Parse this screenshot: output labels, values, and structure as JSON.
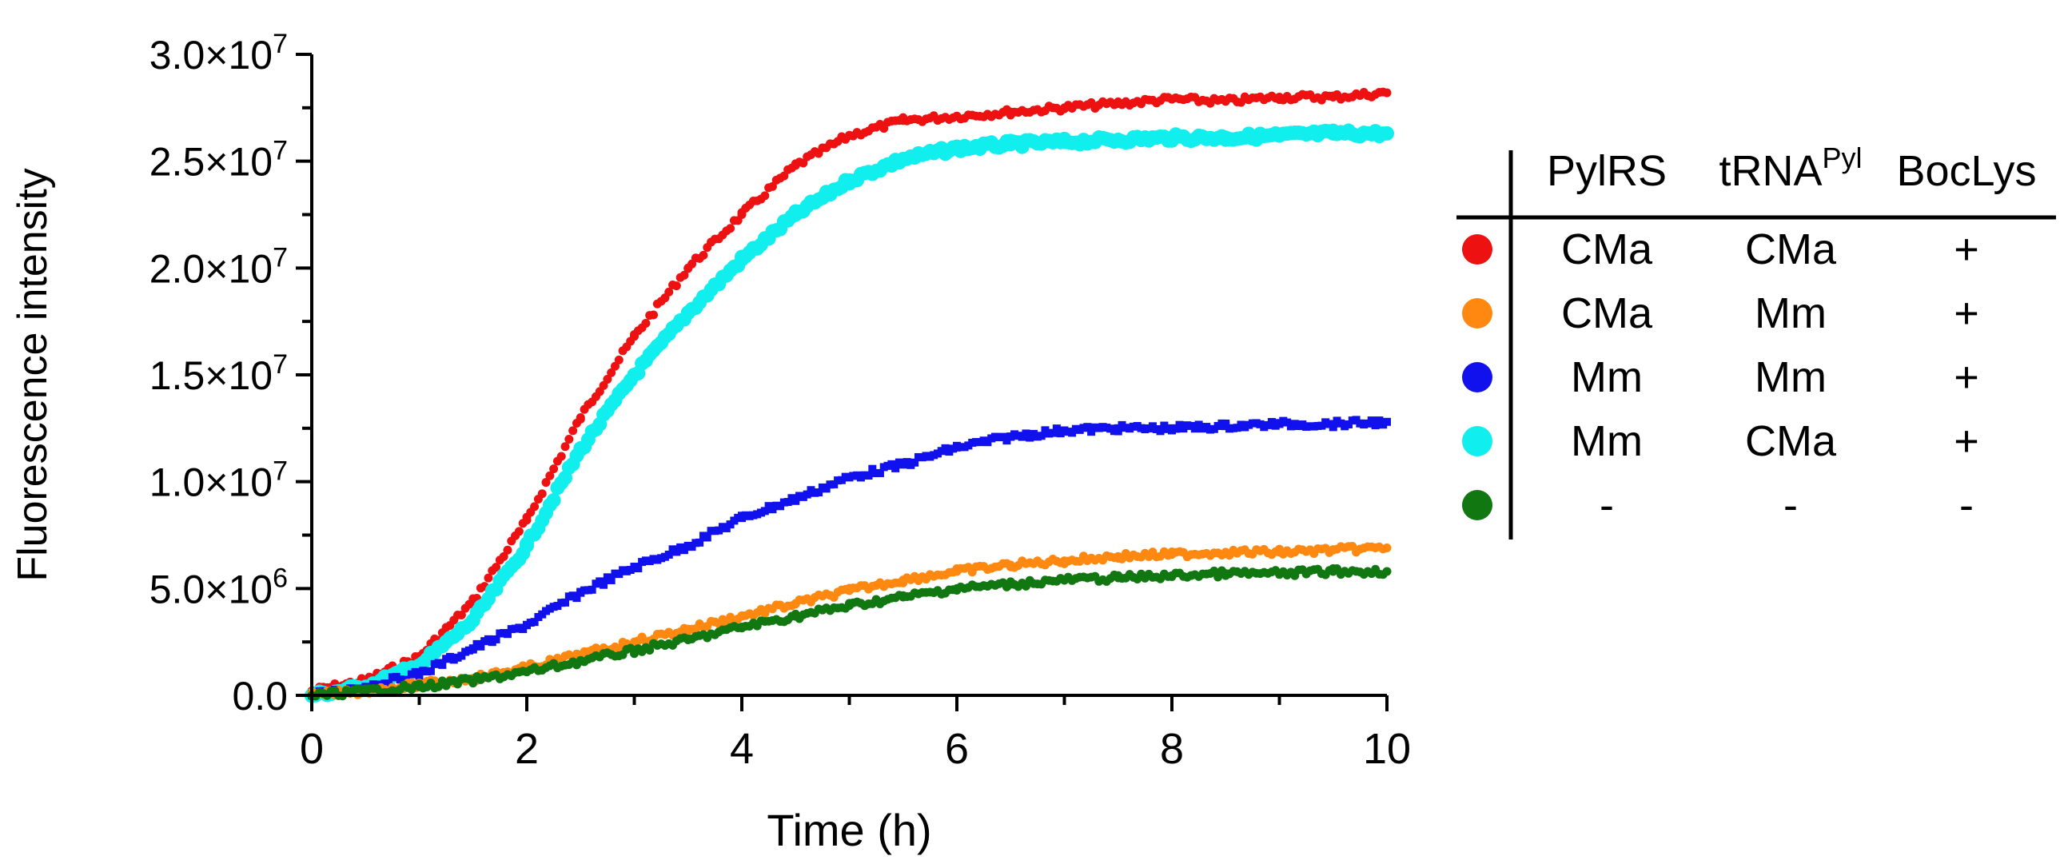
{
  "chart_data": {
    "type": "scatter",
    "title": "",
    "xlabel": "Time (h)",
    "ylabel": "Fluorescence intensity",
    "xlim": [
      0,
      10
    ],
    "ylim": [
      0,
      30000000
    ],
    "xticks": [
      0,
      2,
      4,
      6,
      8,
      10
    ],
    "xtick_labels": [
      "0",
      "2",
      "4",
      "6",
      "8",
      "10"
    ],
    "yticks": [
      0,
      5000000,
      10000000,
      15000000,
      20000000,
      25000000,
      30000000
    ],
    "ytick_labels": [
      {
        "mantissa": "0.0",
        "exp": ""
      },
      {
        "mantissa": "5.0×10",
        "exp": "6"
      },
      {
        "mantissa": "1.0×10",
        "exp": "7"
      },
      {
        "mantissa": "1.5×10",
        "exp": "7"
      },
      {
        "mantissa": "2.0×10",
        "exp": "7"
      },
      {
        "mantissa": "2.5×10",
        "exp": "7"
      },
      {
        "mantissa": "3.0×10",
        "exp": "7"
      }
    ],
    "grid": false,
    "legend_position": "right",
    "legend": {
      "headers": [
        {
          "text": "PylRS",
          "sup": ""
        },
        {
          "text": "tRNA",
          "sup": "Pyl"
        },
        {
          "text": "BocLys",
          "sup": ""
        }
      ],
      "rows": [
        {
          "color": "#ee1111",
          "cells": [
            "CMa",
            "CMa",
            "+"
          ]
        },
        {
          "color": "#ff8811",
          "cells": [
            "CMa",
            "Mm",
            "+"
          ]
        },
        {
          "color": "#1111ee",
          "cells": [
            "Mm",
            "Mm",
            "+"
          ]
        },
        {
          "color": "#11eeee",
          "cells": [
            "Mm",
            "CMa",
            "+"
          ]
        },
        {
          "color": "#117711",
          "cells": [
            "-",
            "-",
            "-"
          ]
        }
      ]
    },
    "series": [
      {
        "name": "PylRS CMa / tRNA CMa / BocLys +",
        "color": "#ee1111",
        "marker": "circle",
        "x": [
          0,
          0.5,
          1,
          1.5,
          2,
          2.5,
          3,
          3.5,
          4,
          4.5,
          5,
          5.5,
          6,
          6.5,
          7,
          7.5,
          8,
          8.5,
          9,
          9.5,
          10
        ],
        "y": [
          200000,
          700000,
          1800000,
          4400000,
          8200000,
          13000000,
          16800000,
          20000000,
          22500000,
          24800000,
          26200000,
          26900000,
          27100000,
          27300000,
          27500000,
          27700000,
          27900000,
          27800000,
          28000000,
          28000000,
          28200000
        ]
      },
      {
        "name": "PylRS Mm / tRNA CMa / BocLys +",
        "color": "#11eeee",
        "marker": "circle",
        "x": [
          0,
          0.5,
          1,
          1.5,
          2,
          2.5,
          3,
          3.5,
          4,
          4.5,
          5,
          5.5,
          6,
          6.5,
          7,
          7.5,
          8,
          8.5,
          9,
          9.5,
          10
        ],
        "y": [
          0,
          400000,
          1400000,
          3500000,
          7000000,
          11500000,
          15000000,
          17900000,
          20400000,
          22500000,
          24100000,
          25100000,
          25600000,
          25800000,
          25900000,
          26000000,
          26100000,
          26100000,
          26200000,
          26300000,
          26300000
        ]
      },
      {
        "name": "PylRS Mm / tRNA Mm / BocLys +",
        "color": "#1111ee",
        "marker": "square",
        "x": [
          0,
          0.5,
          1,
          1.5,
          2,
          2.5,
          3,
          3.5,
          4,
          4.5,
          5,
          5.5,
          6,
          6.5,
          7,
          7.5,
          8,
          8.5,
          9,
          9.5,
          10
        ],
        "y": [
          0,
          400000,
          1000000,
          2200000,
          3300000,
          4800000,
          6000000,
          7000000,
          8300000,
          9200000,
          10200000,
          10800000,
          11600000,
          12100000,
          12400000,
          12500000,
          12500000,
          12600000,
          12700000,
          12700000,
          12800000
        ]
      },
      {
        "name": "PylRS CMa / tRNA Mm / BocLys +",
        "color": "#ff8811",
        "marker": "circle",
        "x": [
          0,
          0.5,
          1,
          1.5,
          2,
          2.5,
          3,
          3.5,
          4,
          4.5,
          5,
          5.5,
          6,
          6.5,
          7,
          7.5,
          8,
          8.5,
          9,
          9.5,
          10
        ],
        "y": [
          0,
          200000,
          500000,
          800000,
          1300000,
          1900000,
          2500000,
          3100000,
          3700000,
          4300000,
          4900000,
          5400000,
          5800000,
          6100000,
          6300000,
          6500000,
          6600000,
          6700000,
          6700000,
          6800000,
          6900000
        ]
      },
      {
        "name": "PylRS - / tRNA - / BocLys -",
        "color": "#117711",
        "marker": "circle",
        "x": [
          0,
          0.5,
          1,
          1.5,
          2,
          2.5,
          3,
          3.5,
          4,
          4.5,
          5,
          5.5,
          6,
          6.5,
          7,
          7.5,
          8,
          8.5,
          9,
          9.5,
          10
        ],
        "y": [
          0,
          200000,
          400000,
          700000,
          1100000,
          1600000,
          2100000,
          2600000,
          3200000,
          3700000,
          4200000,
          4600000,
          5000000,
          5200000,
          5400000,
          5500000,
          5600000,
          5700000,
          5700000,
          5800000,
          5800000
        ]
      }
    ]
  }
}
